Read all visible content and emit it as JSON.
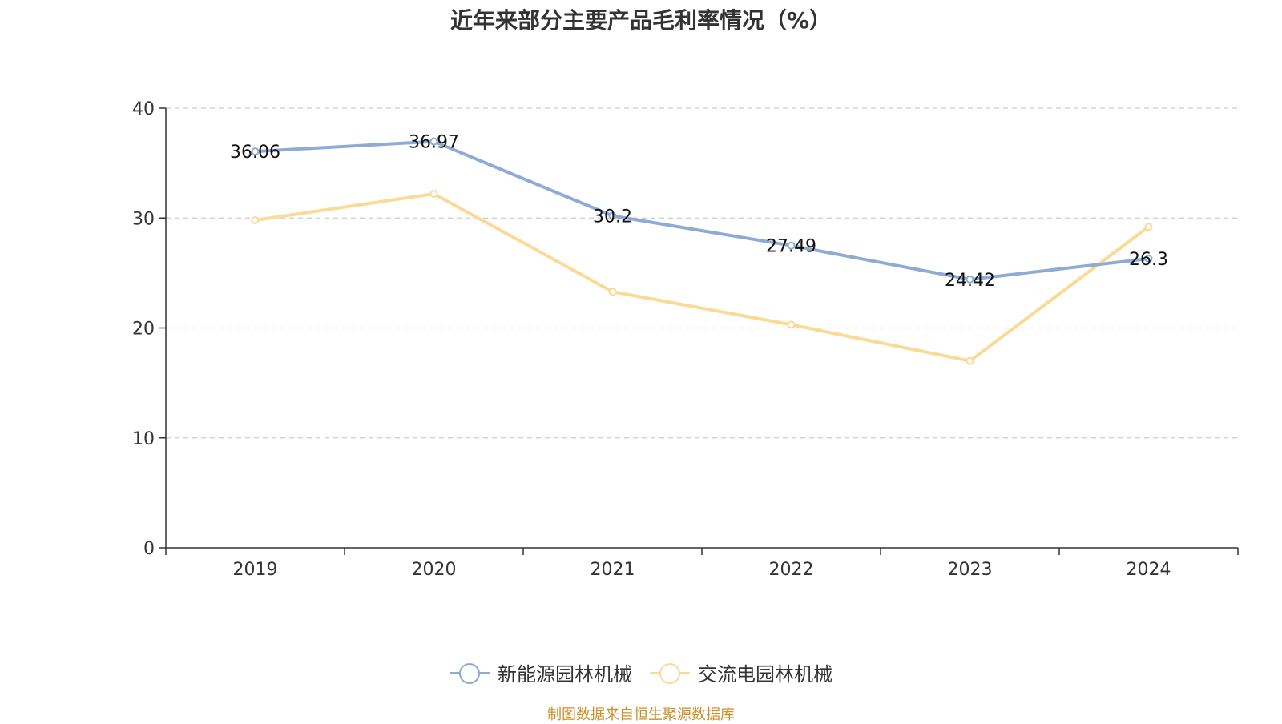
{
  "chart_data": {
    "type": "line",
    "title": "近年来部分主要产品毛利率情况（%）",
    "categories": [
      "2019",
      "2020",
      "2021",
      "2022",
      "2023",
      "2024"
    ],
    "series": [
      {
        "name": "新能源园林机械",
        "color": "#8eabd6",
        "values": [
          36.06,
          36.97,
          30.2,
          27.49,
          24.42,
          26.3
        ],
        "show_labels": true
      },
      {
        "name": "交流电园林机械",
        "color": "#fbd996",
        "values": [
          29.8,
          32.2,
          23.3,
          20.3,
          17.0,
          29.2
        ],
        "show_labels": false
      }
    ],
    "ylim": [
      0,
      40
    ],
    "yticks": [
      0,
      10,
      20,
      30,
      40
    ],
    "grid": true,
    "legend_position": "bottom-center",
    "xlabel": "",
    "ylabel": ""
  },
  "source_text": "制图数据来自恒生聚源数据库",
  "source_color": "#c9902a"
}
